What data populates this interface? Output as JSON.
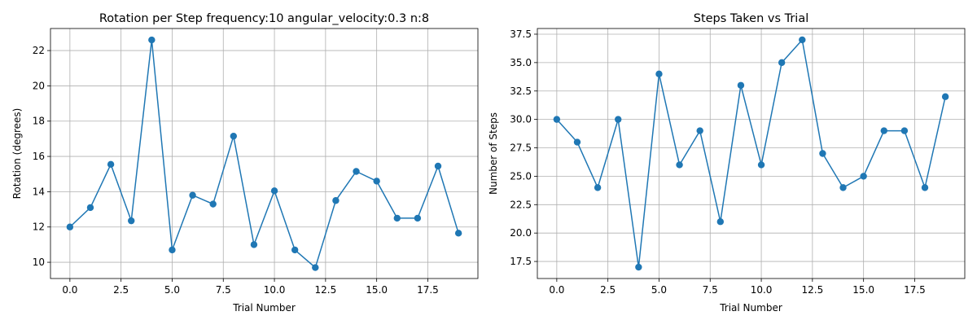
{
  "colors": {
    "line": "#1f77b4",
    "grid": "#b0b0b0",
    "axes": "#000000",
    "background": "#ffffff"
  },
  "chart_data": [
    {
      "type": "line",
      "title": "Rotation per Step frequency:10 angular_velocity:0.3 n:8",
      "xlabel": "Trial Number",
      "ylabel": "Rotation (degrees)",
      "xlim": [
        -0.95,
        19.95
      ],
      "ylim": [
        9.08,
        23.25
      ],
      "grid": true,
      "marker": "circle",
      "xticks": [
        0,
        2.5,
        5,
        7.5,
        10,
        12.5,
        15,
        17.5
      ],
      "xtick_labels": [
        "0.0",
        "2.5",
        "5.0",
        "7.5",
        "10.0",
        "12.5",
        "15.0",
        "17.5"
      ],
      "yticks": [
        10,
        12,
        14,
        16,
        18,
        20,
        22
      ],
      "ytick_labels": [
        "10",
        "12",
        "14",
        "16",
        "18",
        "20",
        "22"
      ],
      "x": [
        0,
        1,
        2,
        3,
        4,
        5,
        6,
        7,
        8,
        9,
        10,
        11,
        12,
        13,
        14,
        15,
        16,
        17,
        18,
        19
      ],
      "series": [
        {
          "values": [
            12.0,
            13.1,
            15.55,
            12.35,
            22.6,
            10.7,
            13.8,
            13.3,
            17.15,
            11.0,
            14.05,
            10.7,
            9.7,
            13.5,
            15.15,
            14.6,
            12.5,
            12.5,
            15.45,
            11.65
          ]
        }
      ]
    },
    {
      "type": "line",
      "title": "Steps Taken vs Trial",
      "xlabel": "Trial Number",
      "ylabel": "Number of Steps",
      "xlim": [
        -0.95,
        19.95
      ],
      "ylim": [
        16.0,
        38.0
      ],
      "grid": true,
      "marker": "circle",
      "xticks": [
        0,
        2.5,
        5,
        7.5,
        10,
        12.5,
        15,
        17.5
      ],
      "xtick_labels": [
        "0.0",
        "2.5",
        "5.0",
        "7.5",
        "10.0",
        "12.5",
        "15.0",
        "17.5"
      ],
      "yticks": [
        17.5,
        20,
        22.5,
        25,
        27.5,
        30,
        32.5,
        35,
        37.5
      ],
      "ytick_labels": [
        "17.5",
        "20.0",
        "22.5",
        "25.0",
        "27.5",
        "30.0",
        "32.5",
        "35.0",
        "37.5"
      ],
      "x": [
        0,
        1,
        2,
        3,
        4,
        5,
        6,
        7,
        8,
        9,
        10,
        11,
        12,
        13,
        14,
        15,
        16,
        17,
        18,
        19
      ],
      "series": [
        {
          "values": [
            30,
            28,
            24,
            30,
            17,
            34,
            26,
            29,
            21,
            33,
            26,
            35,
            37,
            27,
            24,
            25,
            29,
            29,
            24,
            32
          ]
        }
      ]
    }
  ]
}
